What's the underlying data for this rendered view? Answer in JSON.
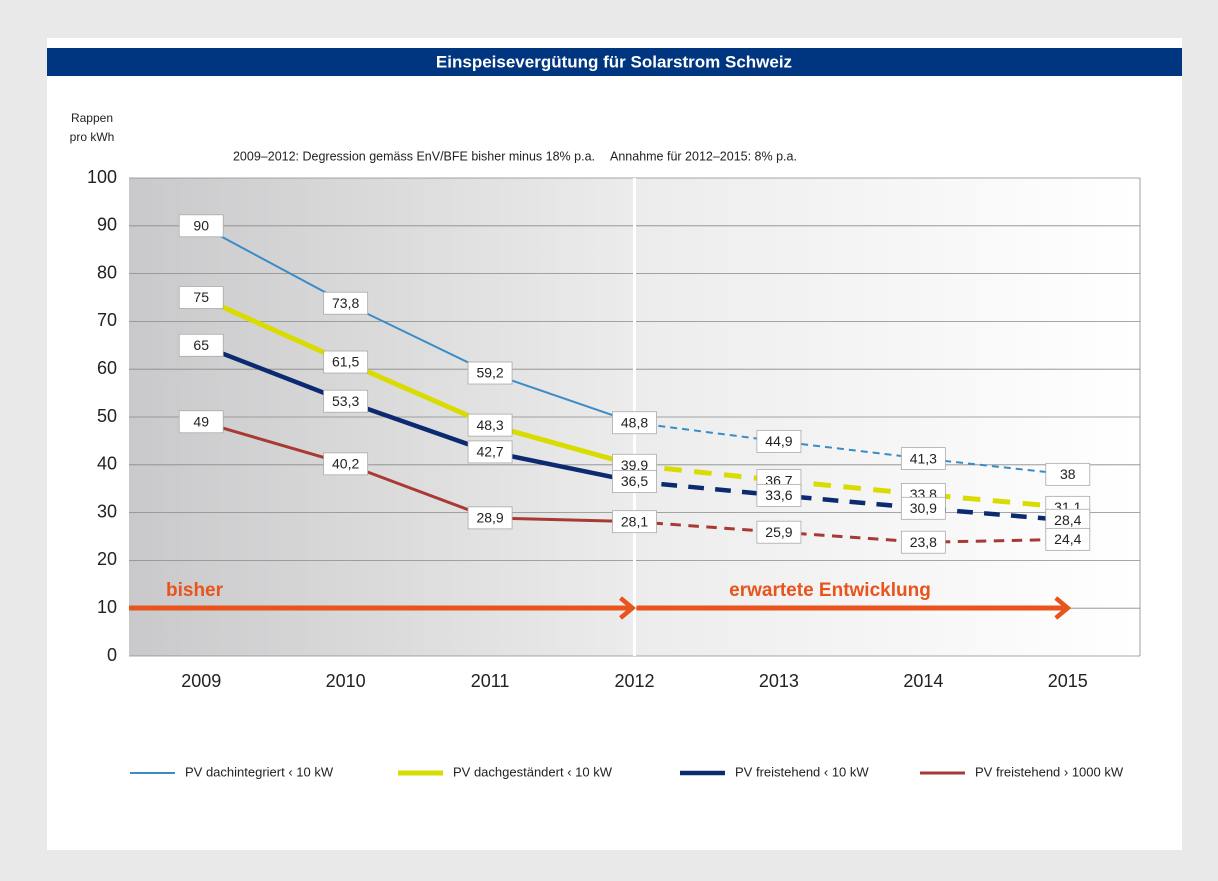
{
  "chart_data": {
    "type": "line",
    "title": "Einspeisevergütung für Solarstrom Schweiz",
    "y_label": [
      "Rappen",
      "pro kWh"
    ],
    "annotations": [
      "2009–2012: Degression gemäss EnV/BFE bisher minus 18% p.a.",
      "Annahme für 2012–2015: 8% p.a."
    ],
    "period_labels": [
      "bisher",
      "erwartete Entwicklung"
    ],
    "split_category": "2012",
    "categories": [
      "2009",
      "2010",
      "2011",
      "2012",
      "2013",
      "2014",
      "2015"
    ],
    "series": [
      {
        "name": "PV dachintegriert ‹ 10 kW",
        "color": "#3a8cc6",
        "width": 2,
        "values": [
          90,
          73.8,
          59.2,
          48.8,
          44.9,
          41.3,
          38
        ],
        "value_labels": [
          "90",
          "73,8",
          "59,2",
          "48,8",
          "44,9",
          "41,3",
          "38"
        ]
      },
      {
        "name": "PV dachgeständert ‹ 10 kW",
        "color": "#d8dc00",
        "width": 5,
        "values": [
          75,
          61.5,
          48.3,
          39.9,
          36.7,
          33.8,
          31.1
        ],
        "value_labels": [
          "75",
          "61,5",
          "48,3",
          "39,9",
          "36,7",
          "33,8",
          "31,1"
        ]
      },
      {
        "name": "PV freistehend ‹ 10 kW",
        "color": "#0b2a70",
        "width": 4.5,
        "values": [
          65,
          53.3,
          42.7,
          36.5,
          33.6,
          30.9,
          28.4
        ],
        "value_labels": [
          "65",
          "53,3",
          "42,7",
          "36,5",
          "33,6",
          "30,9",
          "28,4"
        ]
      },
      {
        "name": "PV freistehend › 1000 kW",
        "color": "#a83a34",
        "width": 3,
        "values": [
          49,
          40.2,
          28.9,
          28.1,
          25.9,
          23.8,
          24.4
        ],
        "value_labels": [
          "49",
          "40,2",
          "28,9",
          "28,1",
          "25,9",
          "23,8",
          "24,4"
        ]
      }
    ],
    "ylim": [
      0,
      100
    ],
    "yticks": [
      0,
      10,
      20,
      30,
      40,
      50,
      60,
      70,
      80,
      90,
      100
    ],
    "grid": true,
    "legend": "bottom"
  }
}
